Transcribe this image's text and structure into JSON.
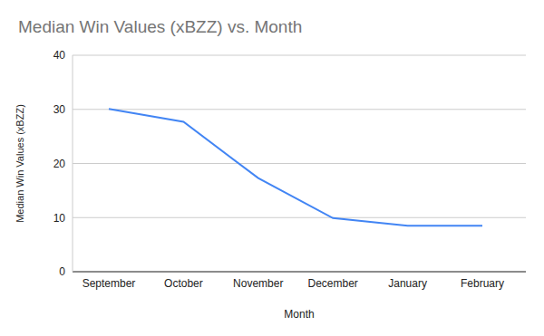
{
  "chart_data": {
    "type": "line",
    "title": "Median Win Values (xBZZ) vs. Month",
    "x_label": "Month",
    "y_label": "Median Win Values (xBZZ)",
    "categories": [
      "September",
      "October",
      "November",
      "December",
      "January",
      "February"
    ],
    "values": [
      30.1,
      27.7,
      17.3,
      9.9,
      8.5,
      8.5
    ],
    "color": "#4285f4",
    "ylim": [
      0,
      40
    ],
    "yticks": [
      0,
      10,
      20,
      30,
      40
    ],
    "grid": true
  }
}
